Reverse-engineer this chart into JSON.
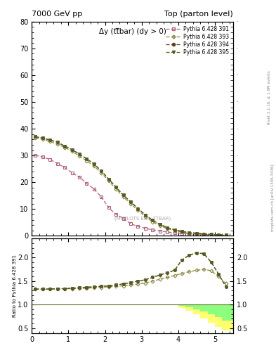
{
  "title_left": "7000 GeV pp",
  "title_right": "Top (parton level)",
  "main_title": "Δy (tt̅bar) (dy > 0)",
  "right_label_top": "Rivet 3.1.10, ≥ 1.9M events",
  "right_label_bottom": "mcplots.cern.ch [arXiv:1306.3436]",
  "watermark": "(MCPLOTS EBA_TTBAR)",
  "ylabel_ratio": "Ratio to Pythia 6.428 391",
  "ylim_main": [
    0,
    80
  ],
  "ylim_ratio": [
    0.4,
    2.4
  ],
  "xlim": [
    0,
    5.5
  ],
  "legend_entries": [
    "Pythia 6.428 391",
    "Pythia 6.428 393",
    "Pythia 6.428 394",
    "Pythia 6.428 395"
  ],
  "colors": [
    "#b06080",
    "#888840",
    "#604020",
    "#506020"
  ],
  "x_391": [
    0.1,
    0.3,
    0.5,
    0.7,
    0.9,
    1.1,
    1.3,
    1.5,
    1.7,
    1.9,
    2.1,
    2.3,
    2.5,
    2.7,
    2.9,
    3.1,
    3.3,
    3.5,
    3.7,
    3.9,
    4.1,
    4.3,
    4.5,
    4.7,
    4.9,
    5.1,
    5.3
  ],
  "y_391": [
    30.0,
    29.5,
    28.5,
    27.0,
    25.5,
    23.5,
    22.0,
    19.5,
    17.5,
    14.5,
    10.5,
    8.0,
    6.5,
    4.5,
    3.5,
    2.8,
    2.2,
    1.8,
    1.4,
    1.1,
    0.9,
    0.7,
    0.5,
    0.35,
    0.25,
    0.18,
    0.12
  ],
  "x_393": [
    0.1,
    0.3,
    0.5,
    0.7,
    0.9,
    1.1,
    1.3,
    1.5,
    1.7,
    1.9,
    2.1,
    2.3,
    2.5,
    2.7,
    2.9,
    3.1,
    3.3,
    3.5,
    3.7,
    3.9,
    4.1,
    4.3,
    4.5,
    4.7,
    4.9,
    5.1,
    5.3
  ],
  "y_393": [
    36.5,
    36.0,
    35.2,
    34.2,
    33.0,
    31.5,
    29.8,
    28.0,
    26.0,
    23.5,
    20.5,
    17.5,
    14.5,
    12.0,
    9.5,
    7.2,
    5.2,
    3.8,
    2.7,
    1.9,
    1.4,
    1.0,
    0.75,
    0.55,
    0.4,
    0.28,
    0.2
  ],
  "x_394": [
    0.1,
    0.3,
    0.5,
    0.7,
    0.9,
    1.1,
    1.3,
    1.5,
    1.7,
    1.9,
    2.1,
    2.3,
    2.5,
    2.7,
    2.9,
    3.1,
    3.3,
    3.5,
    3.7,
    3.9,
    4.1,
    4.3,
    4.5,
    4.7,
    4.9,
    5.1,
    5.3
  ],
  "y_394": [
    37.0,
    36.5,
    35.8,
    35.0,
    33.5,
    32.2,
    30.5,
    28.8,
    26.8,
    24.2,
    21.2,
    18.2,
    15.2,
    12.7,
    10.2,
    7.8,
    5.8,
    4.3,
    3.1,
    2.2,
    1.65,
    1.25,
    0.95,
    0.72,
    0.54,
    0.38,
    0.27
  ],
  "x_395": [
    0.1,
    0.3,
    0.5,
    0.7,
    0.9,
    1.1,
    1.3,
    1.5,
    1.7,
    1.9,
    2.1,
    2.3,
    2.5,
    2.7,
    2.9,
    3.1,
    3.3,
    3.5,
    3.7,
    3.9,
    4.1,
    4.3,
    4.5,
    4.7,
    4.9,
    5.1,
    5.3
  ],
  "y_395": [
    37.0,
    36.5,
    35.8,
    35.0,
    33.5,
    32.2,
    30.5,
    28.8,
    26.8,
    24.2,
    21.2,
    18.2,
    15.2,
    12.7,
    10.2,
    7.8,
    5.8,
    4.3,
    3.1,
    2.2,
    1.65,
    1.25,
    0.95,
    0.72,
    0.54,
    0.38,
    0.27
  ],
  "ratio_393": [
    1.33,
    1.33,
    1.33,
    1.34,
    1.34,
    1.34,
    1.35,
    1.35,
    1.36,
    1.37,
    1.38,
    1.39,
    1.4,
    1.42,
    1.44,
    1.46,
    1.5,
    1.54,
    1.58,
    1.62,
    1.66,
    1.7,
    1.73,
    1.75,
    1.72,
    1.6,
    1.45
  ],
  "ratio_394": [
    1.33,
    1.33,
    1.33,
    1.34,
    1.34,
    1.35,
    1.36,
    1.37,
    1.38,
    1.39,
    1.4,
    1.42,
    1.44,
    1.47,
    1.5,
    1.53,
    1.58,
    1.63,
    1.68,
    1.73,
    1.95,
    2.05,
    2.1,
    2.08,
    1.9,
    1.65,
    1.38
  ],
  "ratio_395": [
    1.33,
    1.33,
    1.33,
    1.34,
    1.34,
    1.35,
    1.36,
    1.37,
    1.38,
    1.39,
    1.4,
    1.42,
    1.44,
    1.47,
    1.5,
    1.53,
    1.58,
    1.63,
    1.68,
    1.73,
    1.95,
    2.05,
    2.1,
    2.08,
    1.9,
    1.65,
    1.38
  ],
  "band_x_edges": [
    3.8,
    4.0,
    4.2,
    4.4,
    4.6,
    4.8,
    5.0,
    5.2,
    5.5
  ],
  "band_green_lo": [
    1.0,
    0.97,
    0.94,
    0.9,
    0.85,
    0.79,
    0.73,
    0.66,
    0.58
  ],
  "band_green_hi": [
    1.0,
    1.0,
    1.0,
    1.0,
    1.0,
    1.0,
    1.0,
    1.0,
    1.0
  ],
  "band_yellow_lo": [
    1.0,
    0.93,
    0.87,
    0.79,
    0.71,
    0.62,
    0.53,
    0.46,
    0.43
  ],
  "band_yellow_hi": [
    1.0,
    1.0,
    1.0,
    1.0,
    1.0,
    1.0,
    1.0,
    1.0,
    1.0
  ]
}
